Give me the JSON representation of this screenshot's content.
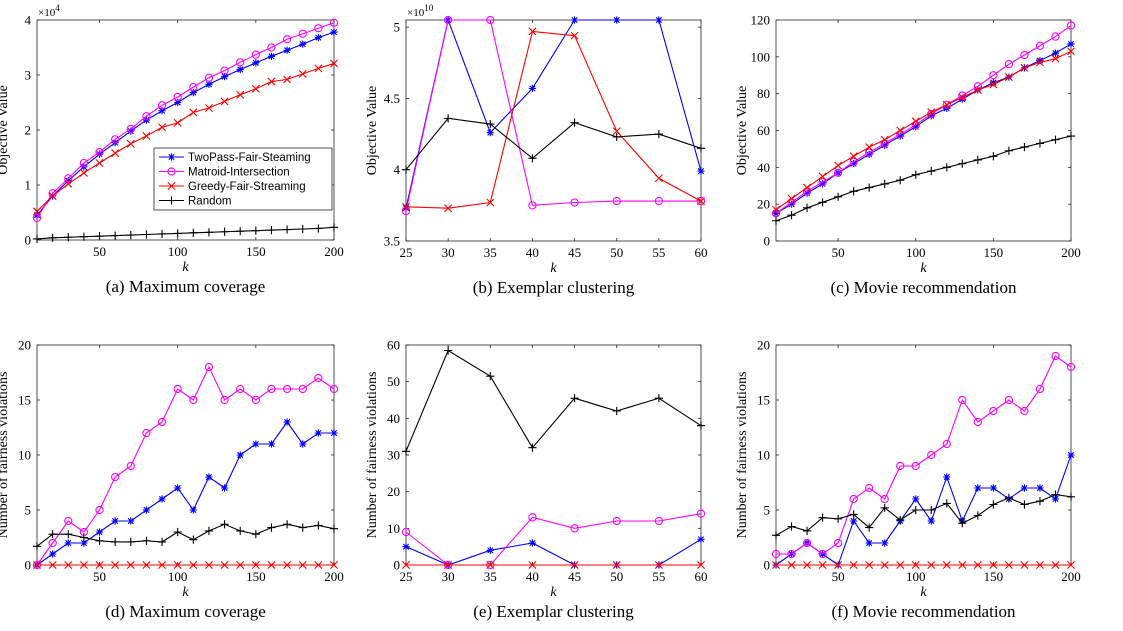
{
  "series_styles": [
    {
      "name": "TwoPass-Fair-Steaming",
      "color": "#0000FF",
      "marker": "asterisk"
    },
    {
      "name": "Matroid-Intersection",
      "color": "#FF00FF",
      "marker": "circle"
    },
    {
      "name": "Greedy-Fair-Streaming",
      "color": "#FF0000",
      "marker": "x"
    },
    {
      "name": "Random",
      "color": "#000000",
      "marker": "plus"
    }
  ],
  "chart_data": [
    {
      "type": "line",
      "caption": "(a)  Maximum coverage",
      "xlabel": "k",
      "ylabel": "Objective Value",
      "exponent_label": "×10",
      "exponent": "4",
      "xlim": [
        10,
        200
      ],
      "ylim": [
        0,
        40000
      ],
      "xticks": [
        50,
        100,
        150,
        200
      ],
      "yticks": [
        0,
        10000,
        20000,
        30000,
        40000
      ],
      "ytick_labels": [
        "0",
        "1",
        "2",
        "3",
        "4"
      ],
      "legend_position": "center-right",
      "x": [
        10,
        20,
        30,
        40,
        50,
        60,
        70,
        80,
        90,
        100,
        110,
        120,
        130,
        140,
        150,
        160,
        170,
        180,
        190,
        200
      ],
      "series": [
        {
          "name": "TwoPass-Fair-Steaming",
          "values": [
            4500,
            8000,
            10800,
            13300,
            15600,
            17700,
            19800,
            21800,
            23500,
            25000,
            26800,
            28300,
            29700,
            31000,
            32200,
            33400,
            34500,
            35600,
            36800,
            37800
          ]
        },
        {
          "name": "Matroid-Intersection",
          "values": [
            4000,
            8500,
            11200,
            14000,
            16000,
            18300,
            20200,
            22500,
            24500,
            26000,
            27800,
            29500,
            30800,
            32300,
            33700,
            35000,
            36500,
            37500,
            38500,
            39500
          ]
        },
        {
          "name": "Greedy-Fair-Streaming",
          "values": [
            5200,
            8000,
            10200,
            12200,
            14000,
            15800,
            17500,
            18900,
            20500,
            21300,
            23200,
            24000,
            25200,
            26400,
            27500,
            28800,
            29200,
            30200,
            31200,
            32100
          ]
        },
        {
          "name": "Random",
          "values": [
            200,
            400,
            500,
            600,
            700,
            800,
            900,
            1000,
            1100,
            1200,
            1300,
            1400,
            1500,
            1600,
            1700,
            1800,
            1900,
            2000,
            2100,
            2300
          ]
        }
      ]
    },
    {
      "type": "line",
      "caption": "(b)  Exemplar clustering",
      "xlabel": "k",
      "ylabel": "Objective Value",
      "exponent_label": "×10",
      "exponent": "10",
      "xlim": [
        25,
        60
      ],
      "ylim": [
        35000000000,
        50500000000
      ],
      "xticks": [
        25,
        30,
        35,
        40,
        45,
        50,
        55,
        60
      ],
      "yticks": [
        35000000000,
        40000000000,
        45000000000,
        50000000000
      ],
      "ytick_labels": [
        "3.5",
        "4",
        "4.5",
        "5"
      ],
      "legend_position": "none",
      "x": [
        25,
        30,
        35,
        40,
        45,
        50,
        55,
        60
      ],
      "series": [
        {
          "name": "TwoPass-Fair-Steaming",
          "values": [
            37300000000,
            50500000000,
            42600000000,
            45700000000,
            50500000000,
            50500000000,
            50500000000,
            39900000000
          ]
        },
        {
          "name": "Matroid-Intersection",
          "values": [
            37100000000,
            50500000000,
            50500000000,
            37500000000,
            37700000000,
            37800000000,
            37800000000,
            37800000000
          ]
        },
        {
          "name": "Greedy-Fair-Streaming",
          "values": [
            37400000000,
            37300000000,
            37700000000,
            49700000000,
            49400000000,
            42700000000,
            39400000000,
            37800000000
          ]
        },
        {
          "name": "Random",
          "values": [
            40000000000,
            43600000000,
            43200000000,
            40800000000,
            43300000000,
            42300000000,
            42500000000,
            41500000000
          ]
        }
      ]
    },
    {
      "type": "line",
      "caption": "(c)  Movie recommendation",
      "xlabel": "k",
      "ylabel": "Objective Value",
      "xlim": [
        10,
        200
      ],
      "ylim": [
        0,
        120
      ],
      "xticks": [
        50,
        100,
        150,
        200
      ],
      "yticks": [
        0,
        20,
        40,
        60,
        80,
        100,
        120
      ],
      "ytick_labels": [
        "0",
        "20",
        "40",
        "60",
        "80",
        "100",
        "120"
      ],
      "legend_position": "none",
      "x": [
        10,
        20,
        30,
        40,
        50,
        60,
        70,
        80,
        90,
        100,
        110,
        120,
        130,
        140,
        150,
        160,
        170,
        180,
        190,
        200
      ],
      "series": [
        {
          "name": "TwoPass-Fair-Steaming",
          "values": [
            15,
            20,
            26,
            31,
            37,
            42,
            47,
            52,
            57,
            62,
            68,
            72,
            77,
            82,
            86,
            89,
            94,
            98,
            102,
            107
          ]
        },
        {
          "name": "Matroid-Intersection",
          "values": [
            15,
            21,
            27,
            32,
            37,
            43,
            48,
            53,
            58,
            63,
            69,
            74,
            79,
            84,
            90,
            96,
            101,
            106,
            111,
            117
          ]
        },
        {
          "name": "Greedy-Fair-Streaming",
          "values": [
            17,
            23,
            29,
            35,
            41,
            46,
            51,
            55,
            60,
            65,
            70,
            74,
            78,
            82,
            85,
            89,
            94,
            97,
            99,
            103
          ]
        },
        {
          "name": "Random",
          "values": [
            11,
            14,
            18,
            21,
            24,
            27,
            29,
            31,
            33,
            36,
            38,
            40,
            42,
            44,
            46,
            49,
            51,
            53,
            55,
            57
          ]
        }
      ]
    },
    {
      "type": "line",
      "caption": "(d)  Maximum coverage",
      "xlabel": "k",
      "ylabel": "Number of fairness violations",
      "xlim": [
        10,
        200
      ],
      "ylim": [
        0,
        20
      ],
      "xticks": [
        50,
        100,
        150,
        200
      ],
      "yticks": [
        0,
        5,
        10,
        15,
        20
      ],
      "ytick_labels": [
        "0",
        "5",
        "10",
        "15",
        "20"
      ],
      "legend_position": "none",
      "x": [
        10,
        20,
        30,
        40,
        50,
        60,
        70,
        80,
        90,
        100,
        110,
        120,
        130,
        140,
        150,
        160,
        170,
        180,
        190,
        200
      ],
      "series": [
        {
          "name": "TwoPass-Fair-Steaming",
          "values": [
            0,
            1,
            2,
            2,
            3,
            4,
            4,
            5,
            6,
            7,
            5,
            8,
            7,
            10,
            11,
            11,
            13,
            11,
            12,
            12
          ]
        },
        {
          "name": "Matroid-Intersection",
          "values": [
            0,
            2,
            4,
            3,
            5,
            8,
            9,
            12,
            13,
            16,
            15,
            18,
            15,
            16,
            15,
            16,
            16,
            16,
            17,
            16
          ]
        },
        {
          "name": "Greedy-Fair-Streaming",
          "values": [
            0,
            0,
            0,
            0,
            0,
            0,
            0,
            0,
            0,
            0,
            0,
            0,
            0,
            0,
            0,
            0,
            0,
            0,
            0,
            0
          ]
        },
        {
          "name": "Random",
          "values": [
            1.7,
            2.8,
            2.8,
            2.5,
            2.2,
            2.1,
            2.1,
            2.2,
            2.1,
            3.0,
            2.3,
            3.1,
            3.7,
            3.1,
            2.8,
            3.4,
            3.7,
            3.4,
            3.6,
            3.3
          ]
        }
      ]
    },
    {
      "type": "line",
      "caption": "(e)  Exemplar clustering",
      "xlabel": "k",
      "ylabel": "Number of fairness violations",
      "xlim": [
        25,
        60
      ],
      "ylim": [
        0,
        60
      ],
      "xticks": [
        25,
        30,
        35,
        40,
        45,
        50,
        55,
        60
      ],
      "yticks": [
        0,
        10,
        20,
        30,
        40,
        50,
        60
      ],
      "ytick_labels": [
        "0",
        "10",
        "20",
        "30",
        "40",
        "50",
        "60"
      ],
      "legend_position": "none",
      "x": [
        25,
        30,
        35,
        40,
        45,
        50,
        55,
        60
      ],
      "series": [
        {
          "name": "TwoPass-Fair-Steaming",
          "values": [
            5,
            0,
            4,
            6,
            0,
            0,
            0,
            7
          ]
        },
        {
          "name": "Matroid-Intersection",
          "values": [
            9,
            0,
            0,
            13,
            10,
            12,
            12,
            14
          ]
        },
        {
          "name": "Greedy-Fair-Streaming",
          "values": [
            0,
            0,
            0,
            0,
            0,
            0,
            0,
            0
          ]
        },
        {
          "name": "Random",
          "values": [
            31,
            58.5,
            51.5,
            32,
            45.5,
            42,
            45.5,
            38
          ]
        }
      ]
    },
    {
      "type": "line",
      "caption": "(f)  Movie recommendation",
      "xlabel": "k",
      "ylabel": "Number of fairness violations",
      "xlim": [
        10,
        200
      ],
      "ylim": [
        0,
        20
      ],
      "xticks": [
        50,
        100,
        150,
        200
      ],
      "yticks": [
        0,
        5,
        10,
        15,
        20
      ],
      "ytick_labels": [
        "0",
        "5",
        "10",
        "15",
        "20"
      ],
      "legend_position": "none",
      "x": [
        10,
        20,
        30,
        40,
        50,
        60,
        70,
        80,
        90,
        100,
        110,
        120,
        130,
        140,
        150,
        160,
        170,
        180,
        190,
        200
      ],
      "series": [
        {
          "name": "TwoPass-Fair-Steaming",
          "values": [
            0,
            1,
            2,
            1,
            0,
            4,
            2,
            2,
            4,
            6,
            4,
            8,
            4,
            7,
            7,
            6,
            7,
            7,
            6,
            10
          ]
        },
        {
          "name": "Matroid-Intersection",
          "values": [
            1,
            1,
            2,
            1,
            2,
            6,
            7,
            6,
            9,
            9,
            10,
            11,
            15,
            13,
            14,
            15,
            14,
            16,
            19,
            18
          ]
        },
        {
          "name": "Greedy-Fair-Streaming",
          "values": [
            0,
            0,
            0,
            0,
            0,
            0,
            0,
            0,
            0,
            0,
            0,
            0,
            0,
            0,
            0,
            0,
            0,
            0,
            0,
            0
          ]
        },
        {
          "name": "Random",
          "values": [
            2.7,
            3.5,
            3.1,
            4.3,
            4.2,
            4.6,
            3.4,
            5.2,
            4.1,
            5.0,
            5.0,
            5.6,
            3.8,
            4.5,
            5.5,
            6.1,
            5.5,
            5.8,
            6.4,
            6.2
          ]
        }
      ]
    }
  ]
}
